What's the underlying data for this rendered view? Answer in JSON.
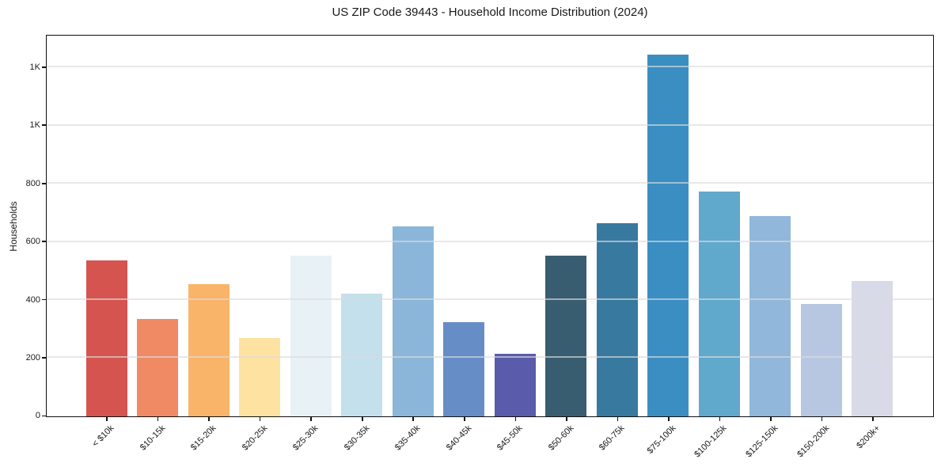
{
  "chart_data": {
    "type": "bar",
    "title": "US ZIP Code 39443 - Household Income Distribution (2024)",
    "xlabel": "",
    "ylabel": "Households",
    "categories": [
      "< $10k",
      "$10-15k",
      "$15-20k",
      "$20-25k",
      "$25-30k",
      "$30-35k",
      "$35-40k",
      "$40-45k",
      "$45-50k",
      "$50-60k",
      "$60-75k",
      "$75-100k",
      "$100-125k",
      "$125-150k",
      "$150-200k",
      "$200k+"
    ],
    "values": [
      538,
      334,
      456,
      271,
      552,
      423,
      654,
      325,
      214,
      553,
      664,
      1245,
      773,
      689,
      388,
      466
    ],
    "bar_colors": [
      "#d5544f",
      "#f08a64",
      "#f9b469",
      "#fde2a1",
      "#e8f1f5",
      "#c3e0ec",
      "#8bb6d9",
      "#668dc5",
      "#5a5bab",
      "#385d70",
      "#38799f",
      "#3a8ec2",
      "#60a8cc",
      "#91b7da",
      "#b8c7e1",
      "#d8dae7"
    ],
    "yticks": [
      {
        "value": 0,
        "label": "0"
      },
      {
        "value": 200,
        "label": "200"
      },
      {
        "value": 400,
        "label": "400"
      },
      {
        "value": 600,
        "label": "600"
      },
      {
        "value": 800,
        "label": "800"
      },
      {
        "value": 1000,
        "label": "1K"
      },
      {
        "value": 1200,
        "label": "1K"
      }
    ],
    "ylim": [
      0,
      1307
    ],
    "grid": "horizontal",
    "legend": "none"
  }
}
